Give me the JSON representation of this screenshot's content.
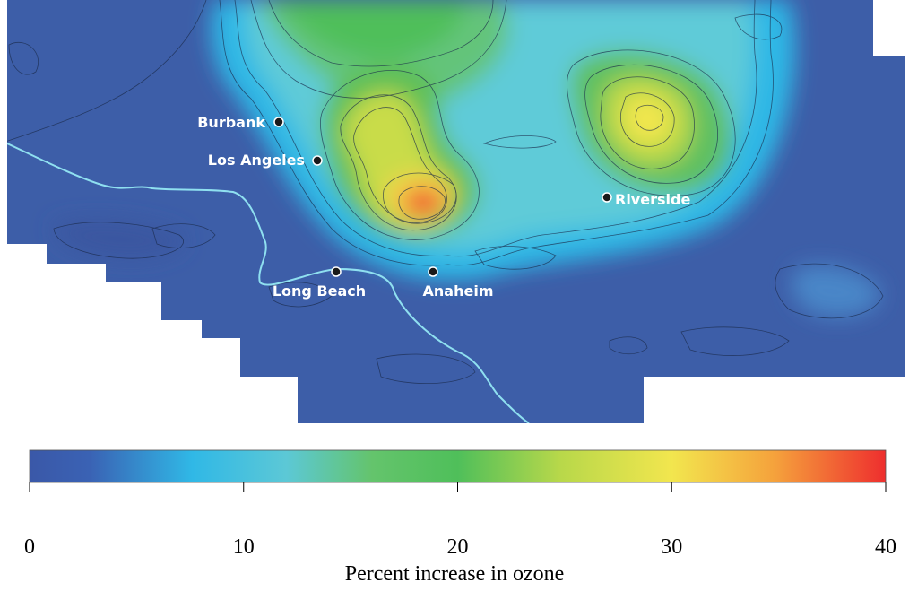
{
  "map": {
    "cities": [
      {
        "name": "Burbank"
      },
      {
        "name": "Los Angeles"
      },
      {
        "name": "Riverside"
      },
      {
        "name": "Long Beach"
      },
      {
        "name": "Anaheim"
      }
    ]
  },
  "colorbar": {
    "min": 0,
    "max": 40,
    "ticks": [
      "0",
      "10",
      "20",
      "30",
      "40"
    ],
    "label": "Percent increase in ozone",
    "colors": [
      "#3a58a8",
      "#3a62b4",
      "#30b8e6",
      "#5cc8d6",
      "#4fbf5a",
      "#cfdf4a",
      "#f2e64e",
      "#f5a23c",
      "#ee2e2e"
    ]
  },
  "colors": {
    "base": "#3d5ea8",
    "coast": "#8fe0f0",
    "land_high": "#ef3a2a"
  }
}
